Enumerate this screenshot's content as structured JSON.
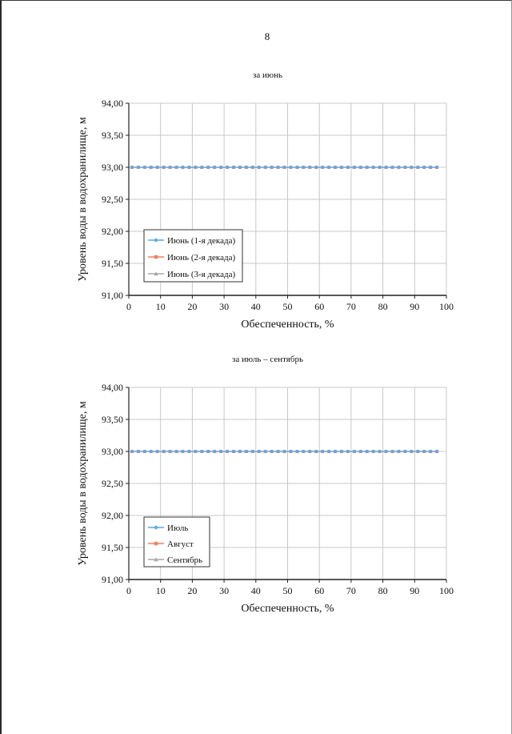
{
  "page": {
    "number": "8"
  },
  "chart_data": [
    {
      "type": "line",
      "title": "за июнь",
      "xlabel": "Обеспеченность, %",
      "ylabel": "Уровень воды в водохранилище, м",
      "xlim": [
        0,
        100
      ],
      "ylim": [
        91.0,
        94.0
      ],
      "x_ticks": [
        0,
        10,
        20,
        30,
        40,
        50,
        60,
        70,
        80,
        90,
        100
      ],
      "x_tick_labels": [
        "0",
        "10",
        "20",
        "30",
        "40",
        "50",
        "60",
        "70",
        "80",
        "90",
        "100"
      ],
      "y_ticks": [
        91.0,
        91.5,
        92.0,
        92.5,
        93.0,
        93.5,
        94.0
      ],
      "y_tick_labels": [
        "91,00",
        "91,50",
        "92,00",
        "92,50",
        "93,00",
        "93,50",
        "94,00"
      ],
      "grid": true,
      "legend_position": "bottom-left",
      "x": [
        1,
        3,
        5,
        7,
        9,
        11,
        13,
        15,
        17,
        19,
        21,
        23,
        25,
        27,
        29,
        31,
        33,
        35,
        37,
        39,
        41,
        43,
        45,
        47,
        49,
        51,
        53,
        55,
        57,
        59,
        61,
        63,
        65,
        67,
        69,
        71,
        73,
        75,
        77,
        79,
        81,
        83,
        85,
        87,
        89,
        91,
        93,
        95,
        97
      ],
      "series": [
        {
          "name": "Июнь (1-я декада)",
          "color": "#5aa9e6",
          "marker": "diamond",
          "values": [
            93.0,
            93.0,
            93.0,
            93.0,
            93.0,
            93.0,
            93.0,
            93.0,
            93.0,
            93.0,
            93.0,
            93.0,
            93.0,
            93.0,
            93.0,
            93.0,
            93.0,
            93.0,
            93.0,
            93.0,
            93.0,
            93.0,
            93.0,
            93.0,
            93.0,
            93.0,
            93.0,
            93.0,
            93.0,
            93.0,
            93.0,
            93.0,
            93.0,
            93.0,
            93.0,
            93.0,
            93.0,
            93.0,
            93.0,
            93.0,
            93.0,
            93.0,
            93.0,
            93.0,
            93.0,
            93.0,
            93.0,
            93.0,
            93.0
          ]
        },
        {
          "name": "Июнь (2-я декада)",
          "color": "#f08060",
          "marker": "square",
          "values": [
            93.0,
            93.0,
            93.0,
            93.0,
            93.0,
            93.0,
            93.0,
            93.0,
            93.0,
            93.0,
            93.0,
            93.0,
            93.0,
            93.0,
            93.0,
            93.0,
            93.0,
            93.0,
            93.0,
            93.0,
            93.0,
            93.0,
            93.0,
            93.0,
            93.0,
            93.0,
            93.0,
            93.0,
            93.0,
            93.0,
            93.0,
            93.0,
            93.0,
            93.0,
            93.0,
            93.0,
            93.0,
            93.0,
            93.0,
            93.0,
            93.0,
            93.0,
            93.0,
            93.0,
            93.0,
            93.0,
            93.0,
            93.0,
            93.0
          ]
        },
        {
          "name": "Июнь (3-я декада)",
          "color": "#a8a8a8",
          "marker": "triangle",
          "values": [
            93.0,
            93.0,
            93.0,
            93.0,
            93.0,
            93.0,
            93.0,
            93.0,
            93.0,
            93.0,
            93.0,
            93.0,
            93.0,
            93.0,
            93.0,
            93.0,
            93.0,
            93.0,
            93.0,
            93.0,
            93.0,
            93.0,
            93.0,
            93.0,
            93.0,
            93.0,
            93.0,
            93.0,
            93.0,
            93.0,
            93.0,
            93.0,
            93.0,
            93.0,
            93.0,
            93.0,
            93.0,
            93.0,
            93.0,
            93.0,
            93.0,
            93.0,
            93.0,
            93.0,
            93.0,
            93.0,
            93.0,
            93.0,
            93.0
          ]
        }
      ]
    },
    {
      "type": "line",
      "title": "за июль – сентябрь",
      "xlabel": "Обеспеченность, %",
      "ylabel": "Уровень воды в водохранилище, м",
      "xlim": [
        0,
        100
      ],
      "ylim": [
        91.0,
        94.0
      ],
      "x_ticks": [
        0,
        10,
        20,
        30,
        40,
        50,
        60,
        70,
        80,
        90,
        100
      ],
      "x_tick_labels": [
        "0",
        "10",
        "20",
        "30",
        "40",
        "50",
        "60",
        "70",
        "80",
        "90",
        "100"
      ],
      "y_ticks": [
        91.0,
        91.5,
        92.0,
        92.5,
        93.0,
        93.5,
        94.0
      ],
      "y_tick_labels": [
        "91,00",
        "91,50",
        "92,00",
        "92,50",
        "93,00",
        "93,50",
        "94,00"
      ],
      "grid": true,
      "legend_position": "bottom-left",
      "x": [
        1,
        3,
        5,
        7,
        9,
        11,
        13,
        15,
        17,
        19,
        21,
        23,
        25,
        27,
        29,
        31,
        33,
        35,
        37,
        39,
        41,
        43,
        45,
        47,
        49,
        51,
        53,
        55,
        57,
        59,
        61,
        63,
        65,
        67,
        69,
        71,
        73,
        75,
        77,
        79,
        81,
        83,
        85,
        87,
        89,
        91,
        93,
        95,
        97
      ],
      "series": [
        {
          "name": "Июль",
          "color": "#5aa9e6",
          "marker": "diamond",
          "values": [
            93.0,
            93.0,
            93.0,
            93.0,
            93.0,
            93.0,
            93.0,
            93.0,
            93.0,
            93.0,
            93.0,
            93.0,
            93.0,
            93.0,
            93.0,
            93.0,
            93.0,
            93.0,
            93.0,
            93.0,
            93.0,
            93.0,
            93.0,
            93.0,
            93.0,
            93.0,
            93.0,
            93.0,
            93.0,
            93.0,
            93.0,
            93.0,
            93.0,
            93.0,
            93.0,
            93.0,
            93.0,
            93.0,
            93.0,
            93.0,
            93.0,
            93.0,
            93.0,
            93.0,
            93.0,
            93.0,
            93.0,
            93.0,
            93.0
          ]
        },
        {
          "name": "Август",
          "color": "#f08060",
          "marker": "square",
          "values": [
            93.0,
            93.0,
            93.0,
            93.0,
            93.0,
            93.0,
            93.0,
            93.0,
            93.0,
            93.0,
            93.0,
            93.0,
            93.0,
            93.0,
            93.0,
            93.0,
            93.0,
            93.0,
            93.0,
            93.0,
            93.0,
            93.0,
            93.0,
            93.0,
            93.0,
            93.0,
            93.0,
            93.0,
            93.0,
            93.0,
            93.0,
            93.0,
            93.0,
            93.0,
            93.0,
            93.0,
            93.0,
            93.0,
            93.0,
            93.0,
            93.0,
            93.0,
            93.0,
            93.0,
            93.0,
            93.0,
            93.0,
            93.0,
            93.0
          ]
        },
        {
          "name": "Сентябрь",
          "color": "#a8a8a8",
          "marker": "triangle",
          "values": [
            93.0,
            93.0,
            93.0,
            93.0,
            93.0,
            93.0,
            93.0,
            93.0,
            93.0,
            93.0,
            93.0,
            93.0,
            93.0,
            93.0,
            93.0,
            93.0,
            93.0,
            93.0,
            93.0,
            93.0,
            93.0,
            93.0,
            93.0,
            93.0,
            93.0,
            93.0,
            93.0,
            93.0,
            93.0,
            93.0,
            93.0,
            93.0,
            93.0,
            93.0,
            93.0,
            93.0,
            93.0,
            93.0,
            93.0,
            93.0,
            93.0,
            93.0,
            93.0,
            93.0,
            93.0,
            93.0,
            93.0,
            93.0,
            93.0
          ]
        }
      ]
    }
  ]
}
